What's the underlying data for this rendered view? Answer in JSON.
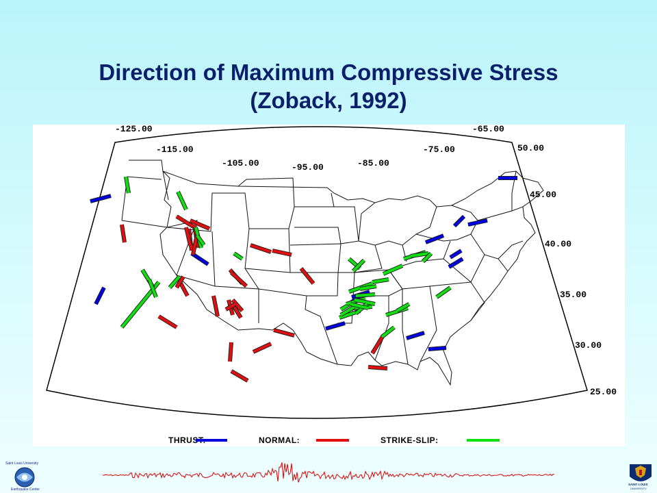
{
  "title": {
    "line1": "Direction of Maximum Compressive Stress",
    "line2": "(Zoback, 1992)"
  },
  "map": {
    "longitude_labels": [
      "-125.00",
      "-115.00",
      "-105.00",
      "-95.00",
      "-85.00",
      "-75.00",
      "-65.00"
    ],
    "latitude_labels": [
      "50.00",
      "45.00",
      "40.00",
      "35.00",
      "30.00",
      "25.00"
    ],
    "legend": [
      {
        "label": "THRUST:",
        "color": "#0000e0"
      },
      {
        "label": "NORMAL:",
        "color": "#e01010"
      },
      {
        "label": "STRIKE-SLIP:",
        "color": "#10e010"
      }
    ],
    "stress_indicators": {
      "thrust": 14,
      "normal": 27,
      "strike_slip": 31
    }
  },
  "logos": {
    "left": {
      "line1": "Saint Louis University",
      "line2": "Earthquake Center"
    },
    "right": {
      "line1": "SAINT LOUIS",
      "line2": "UNIVERSITY"
    }
  }
}
